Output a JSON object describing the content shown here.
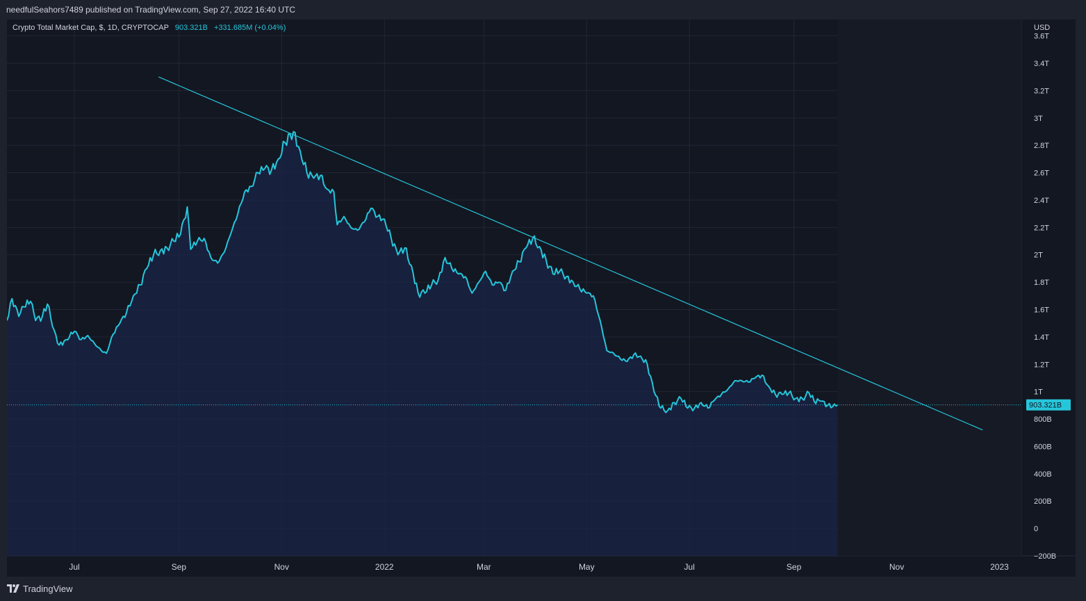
{
  "header": {
    "publisher_text": "needfulSeahors7489 published on TradingView.com, Sep 27, 2022 16:40 UTC"
  },
  "legend": {
    "symbol_text": "Crypto Total Market Cap, $, 1D, CRYPTOCAP",
    "last_value": "903.321B",
    "change_text": "+331.685M (+0.04%)"
  },
  "axis": {
    "currency": "USD"
  },
  "footer": {
    "brand": "TradingView",
    "logo_icon": "tradingview-logo-icon"
  },
  "colors": {
    "background": "#131722",
    "line": "#26c6da",
    "area": "#1a2447",
    "grid": "#232735",
    "text": "#d1d4dc"
  },
  "chart_data": {
    "type": "area",
    "title": "Crypto Total Market Cap, $, 1D, CRYPTOCAP",
    "units": "USD",
    "y_ticks": [
      "3.6T",
      "3.4T",
      "3.2T",
      "3T",
      "2.8T",
      "2.6T",
      "2.4T",
      "2.2T",
      "2T",
      "1.8T",
      "1.6T",
      "1.4T",
      "1.2T",
      "1T",
      "800B",
      "600B",
      "400B",
      "200B",
      "0",
      "−200B"
    ],
    "y_tick_values": [
      3.6,
      3.4,
      3.2,
      3.0,
      2.8,
      2.6,
      2.4,
      2.2,
      2.0,
      1.8,
      1.6,
      1.4,
      1.2,
      1.0,
      0.8,
      0.6,
      0.4,
      0.2,
      0.0,
      -0.2
    ],
    "ylim": [
      -0.2,
      3.72
    ],
    "x_ticks": [
      {
        "label": "Jul",
        "date": "2021-07-01"
      },
      {
        "label": "Sep",
        "date": "2021-09-01"
      },
      {
        "label": "Nov",
        "date": "2021-11-01"
      },
      {
        "label": "2022",
        "date": "2022-01-01"
      },
      {
        "label": "Mar",
        "date": "2022-03-01"
      },
      {
        "label": "May",
        "date": "2022-05-01"
      },
      {
        "label": "Jul",
        "date": "2022-07-01"
      },
      {
        "label": "Sep",
        "date": "2022-09-01"
      },
      {
        "label": "Nov",
        "date": "2022-11-01"
      },
      {
        "label": "2023",
        "date": "2023-01-01"
      }
    ],
    "xlim": [
      "2021-05-22",
      "2023-01-14"
    ],
    "grid": true,
    "series": [
      {
        "x": [
          "2021-05-22",
          "2021-05-25",
          "2021-05-29",
          "2021-06-01",
          "2021-06-05",
          "2021-06-08",
          "2021-06-12",
          "2021-06-15",
          "2021-06-19",
          "2021-06-22",
          "2021-06-26",
          "2021-07-01",
          "2021-07-05",
          "2021-07-09",
          "2021-07-13",
          "2021-07-17",
          "2021-07-20",
          "2021-07-24",
          "2021-07-28",
          "2021-08-01",
          "2021-08-05",
          "2021-08-09",
          "2021-08-13",
          "2021-08-17",
          "2021-08-21",
          "2021-08-25",
          "2021-08-29",
          "2021-09-02",
          "2021-09-06",
          "2021-09-08",
          "2021-09-12",
          "2021-09-16",
          "2021-09-20",
          "2021-09-24",
          "2021-09-28",
          "2021-10-02",
          "2021-10-06",
          "2021-10-10",
          "2021-10-14",
          "2021-10-18",
          "2021-10-22",
          "2021-10-26",
          "2021-10-30",
          "2021-11-03",
          "2021-11-08",
          "2021-11-12",
          "2021-11-16",
          "2021-11-20",
          "2021-11-24",
          "2021-11-28",
          "2021-12-02",
          "2021-12-04",
          "2021-12-08",
          "2021-12-12",
          "2021-12-16",
          "2021-12-20",
          "2021-12-24",
          "2021-12-28",
          "2022-01-01",
          "2022-01-05",
          "2022-01-09",
          "2022-01-13",
          "2022-01-17",
          "2022-01-21",
          "2022-01-25",
          "2022-01-29",
          "2022-02-02",
          "2022-02-06",
          "2022-02-10",
          "2022-02-14",
          "2022-02-18",
          "2022-02-22",
          "2022-02-26",
          "2022-03-02",
          "2022-03-06",
          "2022-03-10",
          "2022-03-14",
          "2022-03-18",
          "2022-03-22",
          "2022-03-26",
          "2022-03-30",
          "2022-04-03",
          "2022-04-07",
          "2022-04-11",
          "2022-04-15",
          "2022-04-19",
          "2022-04-23",
          "2022-04-27",
          "2022-05-01",
          "2022-05-05",
          "2022-05-09",
          "2022-05-13",
          "2022-05-17",
          "2022-05-21",
          "2022-05-25",
          "2022-05-29",
          "2022-06-02",
          "2022-06-06",
          "2022-06-10",
          "2022-06-14",
          "2022-06-18",
          "2022-06-22",
          "2022-06-26",
          "2022-06-30",
          "2022-07-04",
          "2022-07-08",
          "2022-07-12",
          "2022-07-16",
          "2022-07-20",
          "2022-07-24",
          "2022-07-28",
          "2022-08-01",
          "2022-08-05",
          "2022-08-09",
          "2022-08-13",
          "2022-08-17",
          "2022-08-21",
          "2022-08-25",
          "2022-08-29",
          "2022-09-02",
          "2022-09-06",
          "2022-09-10",
          "2022-09-13",
          "2022-09-17",
          "2022-09-21",
          "2022-09-24",
          "2022-09-27"
        ],
        "y": [
          1.52,
          1.68,
          1.55,
          1.62,
          1.66,
          1.52,
          1.55,
          1.64,
          1.45,
          1.34,
          1.38,
          1.44,
          1.38,
          1.41,
          1.35,
          1.3,
          1.28,
          1.42,
          1.5,
          1.58,
          1.7,
          1.78,
          1.9,
          2.0,
          2.03,
          2.05,
          2.1,
          2.15,
          2.35,
          2.04,
          2.1,
          2.12,
          1.98,
          1.94,
          2.02,
          2.16,
          2.3,
          2.46,
          2.5,
          2.6,
          2.63,
          2.62,
          2.7,
          2.82,
          2.9,
          2.76,
          2.6,
          2.56,
          2.58,
          2.48,
          2.46,
          2.22,
          2.28,
          2.2,
          2.18,
          2.24,
          2.34,
          2.28,
          2.26,
          2.12,
          2.0,
          2.05,
          1.92,
          1.72,
          1.72,
          1.78,
          1.82,
          1.98,
          1.9,
          1.86,
          1.84,
          1.72,
          1.8,
          1.88,
          1.78,
          1.8,
          1.74,
          1.88,
          1.95,
          2.05,
          2.12,
          2.06,
          1.96,
          1.86,
          1.88,
          1.84,
          1.8,
          1.75,
          1.72,
          1.7,
          1.52,
          1.3,
          1.28,
          1.24,
          1.22,
          1.27,
          1.26,
          1.2,
          1.0,
          0.88,
          0.86,
          0.92,
          0.95,
          0.88,
          0.88,
          0.92,
          0.88,
          0.94,
          0.98,
          1.02,
          1.08,
          1.08,
          1.07,
          1.1,
          1.12,
          1.04,
          0.98,
          0.98,
          0.99,
          0.95,
          0.95,
          0.99,
          0.93,
          0.93,
          0.9,
          0.89,
          0.903
        ]
      }
    ],
    "annotations": [
      {
        "type": "trendline",
        "from": {
          "x": "2021-08-20",
          "y": 3.3
        },
        "to": {
          "x": "2022-12-22",
          "y": 0.72
        }
      },
      {
        "type": "price_line",
        "y": 0.903321,
        "label": "903.321B"
      }
    ]
  }
}
